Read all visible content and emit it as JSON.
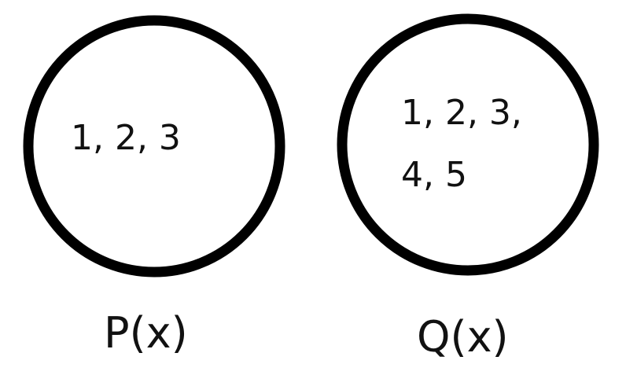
{
  "sets": {
    "p": {
      "elements_text": "1, 2, 3",
      "label": "P(x)"
    },
    "q": {
      "elements_line1": "1, 2, 3,",
      "elements_line2": "4, 5",
      "label": "Q(x)"
    }
  },
  "colors": {
    "ring_stroke": "#000000",
    "text": "#111111",
    "background": "#ffffff"
  }
}
